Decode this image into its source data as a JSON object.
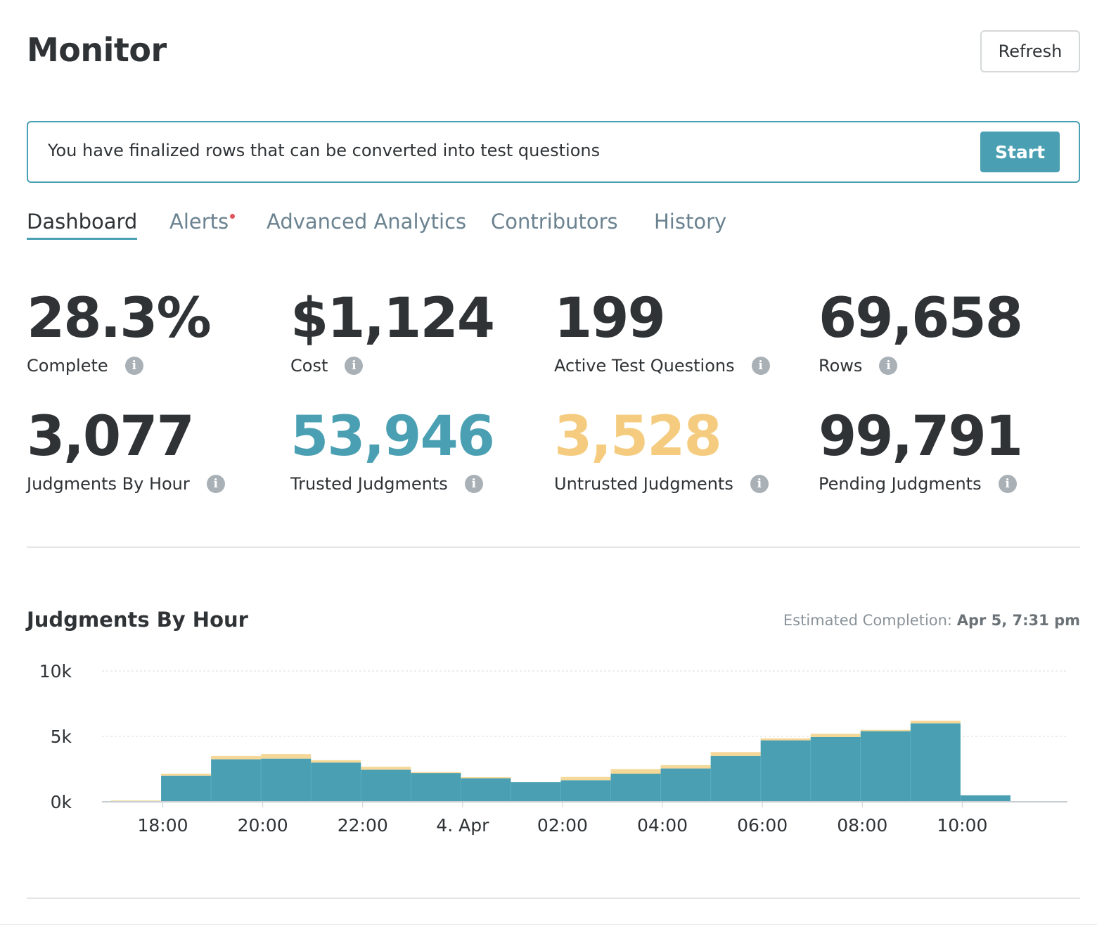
{
  "header": {
    "title": "Monitor",
    "refresh_label": "Refresh"
  },
  "banner": {
    "message": "You have finalized rows that can be converted into test questions",
    "start_label": "Start"
  },
  "tabs": [
    {
      "label": "Dashboard",
      "active": true
    },
    {
      "label": "Alerts",
      "has_alert": true
    },
    {
      "label": "Advanced Analytics"
    },
    {
      "label": "Contributors"
    },
    {
      "label": "History"
    }
  ],
  "metrics": [
    {
      "value": "28.3%",
      "label": "Complete",
      "color": "#2f3336"
    },
    {
      "value": "$1,124",
      "label": "Cost",
      "color": "#2f3336"
    },
    {
      "value": "199",
      "label": "Active Test Questions",
      "color": "#2f3336"
    },
    {
      "value": "69,658",
      "label": "Rows",
      "color": "#2f3336"
    },
    {
      "value": "3,077",
      "label": "Judgments By Hour",
      "color": "#2f3336"
    },
    {
      "value": "53,946",
      "label": "Trusted Judgments",
      "color": "#4aa0b2"
    },
    {
      "value": "3,528",
      "label": "Untrusted Judgments",
      "color": "#f5cc7f"
    },
    {
      "value": "99,791",
      "label": "Pending Judgments",
      "color": "#2f3336"
    }
  ],
  "info_icon": "info-icon",
  "chart_section": {
    "title": "Judgments By Hour",
    "estimate_label": "Estimated Completion: ",
    "estimate_value": "Apr 5, 7:31 pm"
  },
  "chart_data": {
    "type": "area",
    "title": "Judgments By Hour",
    "xlabel": "",
    "ylabel": "",
    "x_tick_labels": [
      "18:00",
      "20:00",
      "22:00",
      "4. Apr",
      "02:00",
      "04:00",
      "06:00",
      "08:00",
      "10:00"
    ],
    "y_tick_labels": [
      "0k",
      "5k",
      "10k"
    ],
    "ylim": [
      0,
      10000
    ],
    "x": [
      "17:00",
      "18:00",
      "19:00",
      "20:00",
      "21:00",
      "22:00",
      "23:00",
      "00:00",
      "01:00",
      "02:00",
      "03:00",
      "04:00",
      "05:00",
      "06:00",
      "07:00",
      "08:00",
      "09:00",
      "10:00",
      "11:00"
    ],
    "step": true,
    "stacked": true,
    "grid": true,
    "series": [
      {
        "color": "#4aa0b2",
        "values": [
          20,
          2000,
          3250,
          3300,
          3000,
          2450,
          2200,
          1800,
          1500,
          1650,
          2150,
          2550,
          3500,
          4700,
          4950,
          5400,
          6000,
          500,
          0
        ]
      },
      {
        "color": "#f5d898",
        "values": [
          80,
          150,
          250,
          350,
          180,
          230,
          70,
          80,
          0,
          250,
          350,
          250,
          300,
          150,
          250,
          100,
          200,
          0,
          0
        ]
      }
    ]
  }
}
